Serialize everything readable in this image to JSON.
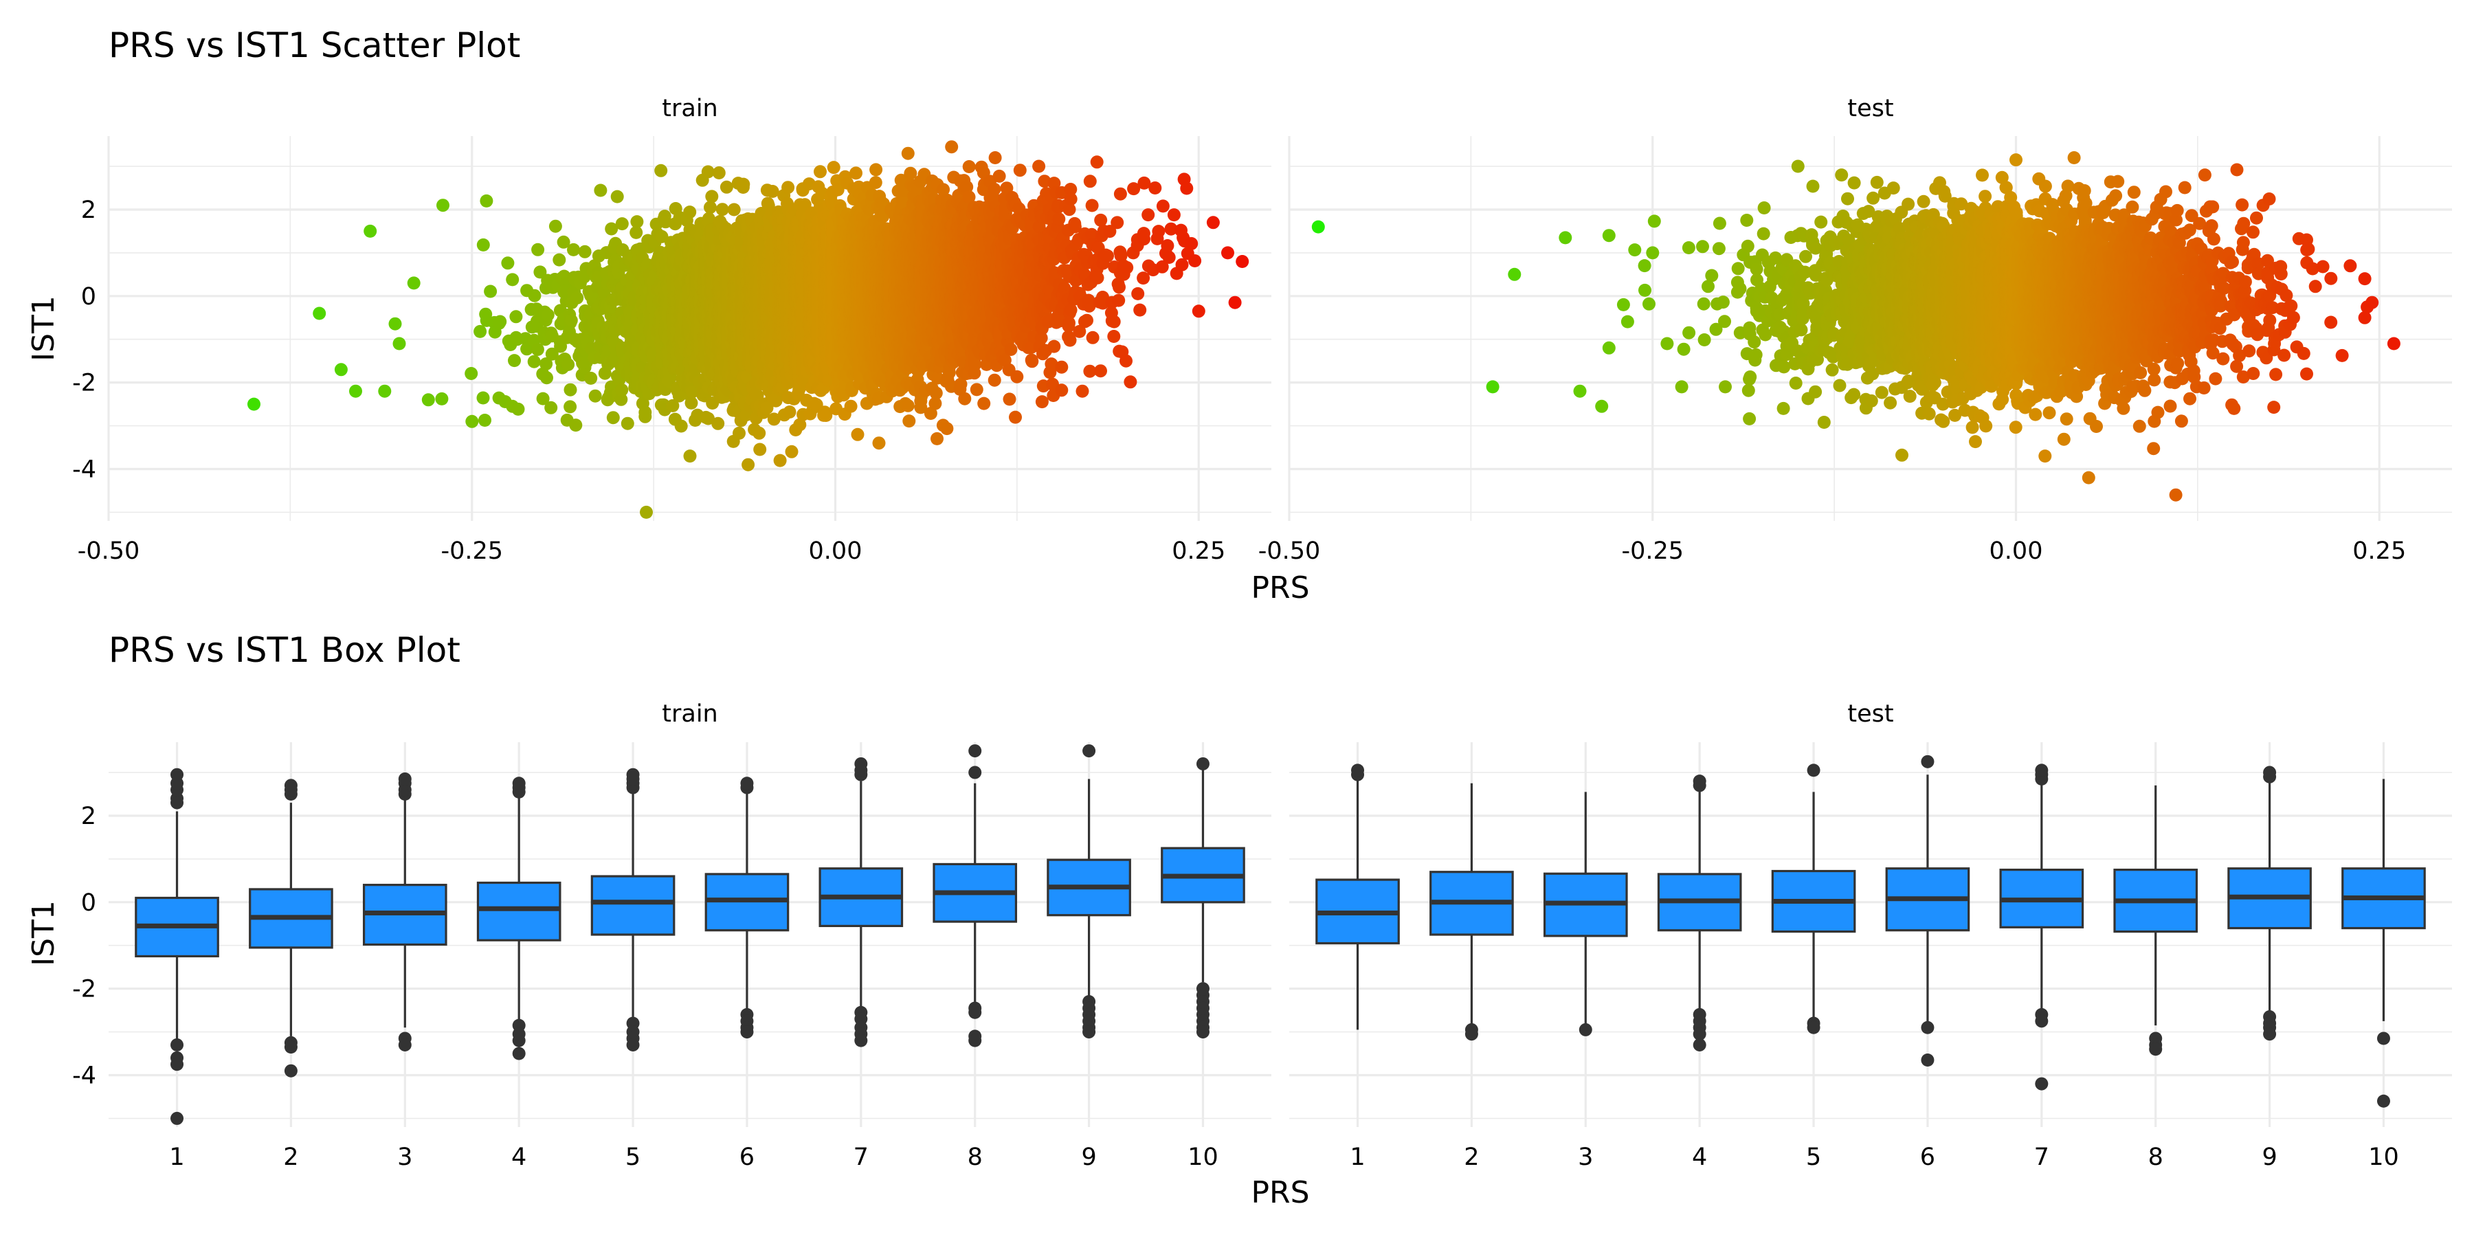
{
  "chart_data": [
    {
      "type": "scatter",
      "title": "PRS vs IST1 Scatter Plot",
      "xlabel": "PRS",
      "ylabel": "IST1",
      "xlim": [
        -0.5,
        0.3
      ],
      "ylim": [
        -5.2,
        3.7
      ],
      "x_ticks": [
        "-0.50",
        "-0.25",
        "0.00",
        "0.25"
      ],
      "x_tick_values": [
        -0.5,
        -0.25,
        0,
        0.25
      ],
      "y_ticks": [
        "2",
        "0",
        "-2",
        "-4"
      ],
      "y_tick_values": [
        2,
        0,
        -2,
        -4
      ],
      "grid": true,
      "color_scale": {
        "low": "#22ee00",
        "mid": "#d49200",
        "high": "#ee1100",
        "domain": [
          -0.48,
          0.28
        ]
      },
      "facets": [
        {
          "name": "train",
          "points": [
            [
              -0.4,
              -2.5
            ],
            [
              -0.355,
              -0.4
            ],
            [
              -0.34,
              -1.7
            ],
            [
              -0.32,
              1.5
            ],
            [
              -0.33,
              -2.2
            ],
            [
              -0.31,
              -2.2
            ],
            [
              -0.27,
              2.1
            ],
            [
              -0.24,
              2.2
            ],
            [
              -0.13,
              -5.0
            ],
            [
              -0.1,
              -3.7
            ],
            [
              -0.06,
              -3.9
            ],
            [
              -0.15,
              2.3
            ],
            [
              -0.12,
              2.9
            ],
            [
              -0.08,
              2.85
            ],
            [
              0.05,
              3.3
            ],
            [
              0.08,
              3.45
            ],
            [
              0.11,
              3.2
            ],
            [
              0.14,
              3.0
            ],
            [
              0.18,
              3.1
            ],
            [
              0.22,
              2.5
            ],
            [
              0.24,
              2.7
            ],
            [
              0.26,
              1.7
            ],
            [
              0.27,
              1.0
            ],
            [
              0.28,
              0.8
            ],
            [
              0.275,
              -0.15
            ],
            [
              0.25,
              -0.35
            ],
            [
              0.2,
              -1.5
            ],
            [
              0.15,
              -2.3
            ],
            [
              0.17,
              -2.2
            ],
            [
              0.07,
              -3.3
            ],
            [
              0.03,
              -3.4
            ],
            [
              -0.03,
              -3.6
            ],
            [
              -0.25,
              -2.9
            ],
            [
              -0.28,
              -2.4
            ],
            [
              -0.3,
              -1.1
            ],
            [
              -0.29,
              0.3
            ]
          ],
          "cloud": {
            "x_mean": 0.0,
            "x_sd": 0.075,
            "y_mean": 0.0,
            "y_sd": 0.95,
            "slope": 3.6,
            "n": 9000
          }
        },
        {
          "name": "test",
          "points": [
            [
              -0.48,
              1.6
            ],
            [
              -0.345,
              0.5
            ],
            [
              -0.36,
              -2.1
            ],
            [
              -0.31,
              1.35
            ],
            [
              -0.3,
              -2.2
            ],
            [
              -0.285,
              -2.55
            ],
            [
              -0.28,
              1.4
            ],
            [
              -0.27,
              -0.2
            ],
            [
              -0.25,
              1.0
            ],
            [
              -0.24,
              -1.1
            ],
            [
              -0.23,
              -2.1
            ],
            [
              -0.28,
              -1.2
            ],
            [
              -0.15,
              3.0
            ],
            [
              -0.12,
              2.8
            ],
            [
              0.0,
              3.15
            ],
            [
              0.04,
              3.2
            ],
            [
              0.13,
              2.8
            ],
            [
              0.17,
              2.1
            ],
            [
              0.2,
              1.3
            ],
            [
              0.23,
              0.7
            ],
            [
              0.24,
              0.4
            ],
            [
              0.245,
              -0.15
            ],
            [
              0.24,
              -0.5
            ],
            [
              0.26,
              -1.1
            ],
            [
              0.2,
              -1.8
            ],
            [
              0.15,
              -2.6
            ],
            [
              0.11,
              -4.6
            ],
            [
              0.05,
              -4.2
            ],
            [
              0.02,
              -3.7
            ],
            [
              -0.05,
              -2.9
            ],
            [
              -0.16,
              -2.6
            ],
            [
              -0.2,
              -2.1
            ]
          ],
          "cloud": {
            "x_mean": 0.0,
            "x_sd": 0.072,
            "y_mean": -0.1,
            "y_sd": 0.95,
            "slope": 0.6,
            "n": 5000
          }
        }
      ]
    },
    {
      "type": "box",
      "title": "PRS vs IST1 Box Plot",
      "xlabel": "PRS",
      "ylabel": "IST1",
      "categories": [
        "1",
        "2",
        "3",
        "4",
        "5",
        "6",
        "7",
        "8",
        "9",
        "10"
      ],
      "ylim": [
        -5.2,
        3.7
      ],
      "y_ticks": [
        "2",
        "0",
        "-2",
        "-4"
      ],
      "y_tick_values": [
        2,
        0,
        -2,
        -4
      ],
      "box_color": "#1e90ff",
      "facets": [
        {
          "name": "train",
          "boxes": [
            {
              "q1": -1.25,
              "med": -0.55,
              "q3": 0.1,
              "lo": -3.2,
              "hi": 2.1,
              "out": [
                2.3,
                2.4,
                2.6,
                2.75,
                2.95,
                -3.3,
                -3.6,
                -3.75,
                -5.0
              ]
            },
            {
              "q1": -1.05,
              "med": -0.35,
              "q3": 0.3,
              "lo": -3.1,
              "hi": 2.3,
              "out": [
                2.5,
                2.6,
                2.7,
                -3.25,
                -3.35,
                -3.9
              ]
            },
            {
              "q1": -0.98,
              "med": -0.25,
              "q3": 0.4,
              "lo": -2.9,
              "hi": 2.4,
              "out": [
                2.5,
                2.6,
                2.75,
                2.85,
                -3.15,
                -3.3
              ]
            },
            {
              "q1": -0.88,
              "med": -0.15,
              "q3": 0.45,
              "lo": -2.75,
              "hi": 2.45,
              "out": [
                2.55,
                2.65,
                2.75,
                -2.85,
                -3.05,
                -3.2,
                -3.5
              ]
            },
            {
              "q1": -0.75,
              "med": 0.0,
              "q3": 0.6,
              "lo": -2.65,
              "hi": 2.55,
              "out": [
                2.65,
                2.75,
                2.85,
                2.95,
                -2.8,
                -3.0,
                -3.15,
                -3.3
              ]
            },
            {
              "q1": -0.65,
              "med": 0.05,
              "q3": 0.65,
              "lo": -2.5,
              "hi": 2.55,
              "out": [
                2.65,
                2.75,
                -2.6,
                -2.75,
                -2.9,
                -3.0
              ]
            },
            {
              "q1": -0.55,
              "med": 0.12,
              "q3": 0.78,
              "lo": -2.45,
              "hi": 2.8,
              "out": [
                2.95,
                3.05,
                3.2,
                -2.55,
                -2.7,
                -2.9,
                -3.05,
                -3.2
              ]
            },
            {
              "q1": -0.45,
              "med": 0.22,
              "q3": 0.88,
              "lo": -2.3,
              "hi": 2.75,
              "out": [
                3.0,
                3.5,
                -2.45,
                -2.55,
                -3.1,
                -3.2
              ]
            },
            {
              "q1": -0.3,
              "med": 0.35,
              "q3": 0.98,
              "lo": -2.2,
              "hi": 2.85,
              "out": [
                3.5,
                -2.3,
                -2.45,
                -2.6,
                -2.75,
                -2.9,
                -3.0
              ]
            },
            {
              "q1": 0.0,
              "med": 0.6,
              "q3": 1.25,
              "lo": -1.85,
              "hi": 3.1,
              "out": [
                3.2,
                -2.0,
                -2.15,
                -2.3,
                -2.45,
                -2.6,
                -2.75,
                -2.9,
                -3.0
              ]
            }
          ]
        },
        {
          "name": "test",
          "boxes": [
            {
              "q1": -0.95,
              "med": -0.25,
              "q3": 0.52,
              "lo": -2.95,
              "hi": 2.85,
              "out": [
                2.95,
                3.05
              ]
            },
            {
              "q1": -0.75,
              "med": 0.0,
              "q3": 0.7,
              "lo": -2.85,
              "hi": 2.75,
              "out": [
                -2.95,
                -3.05
              ]
            },
            {
              "q1": -0.78,
              "med": -0.02,
              "q3": 0.66,
              "lo": -2.85,
              "hi": 2.55,
              "out": [
                -2.95
              ]
            },
            {
              "q1": -0.65,
              "med": 0.03,
              "q3": 0.65,
              "lo": -2.55,
              "hi": 2.65,
              "out": [
                2.7,
                2.8,
                -2.6,
                -2.75,
                -2.9,
                -3.05,
                -3.3
              ]
            },
            {
              "q1": -0.68,
              "med": 0.02,
              "q3": 0.72,
              "lo": -2.7,
              "hi": 2.55,
              "out": [
                3.05,
                -2.8,
                -2.9
              ]
            },
            {
              "q1": -0.65,
              "med": 0.08,
              "q3": 0.78,
              "lo": -2.8,
              "hi": 2.95,
              "out": [
                3.25,
                -2.9,
                -3.65
              ]
            },
            {
              "q1": -0.58,
              "med": 0.05,
              "q3": 0.75,
              "lo": -2.5,
              "hi": 2.75,
              "out": [
                2.85,
                2.95,
                3.05,
                -2.6,
                -2.75,
                -4.2
              ]
            },
            {
              "q1": -0.68,
              "med": 0.03,
              "q3": 0.75,
              "lo": -2.85,
              "hi": 2.7,
              "out": [
                -3.15,
                -3.3,
                -3.4
              ]
            },
            {
              "q1": -0.6,
              "med": 0.12,
              "q3": 0.78,
              "lo": -2.55,
              "hi": 2.8,
              "out": [
                2.9,
                3.0,
                -2.65,
                -2.8,
                -2.9,
                -3.05
              ]
            },
            {
              "q1": -0.6,
              "med": 0.1,
              "q3": 0.78,
              "lo": -2.75,
              "hi": 2.85,
              "out": [
                -3.15,
                -4.6
              ]
            }
          ]
        }
      ]
    }
  ]
}
